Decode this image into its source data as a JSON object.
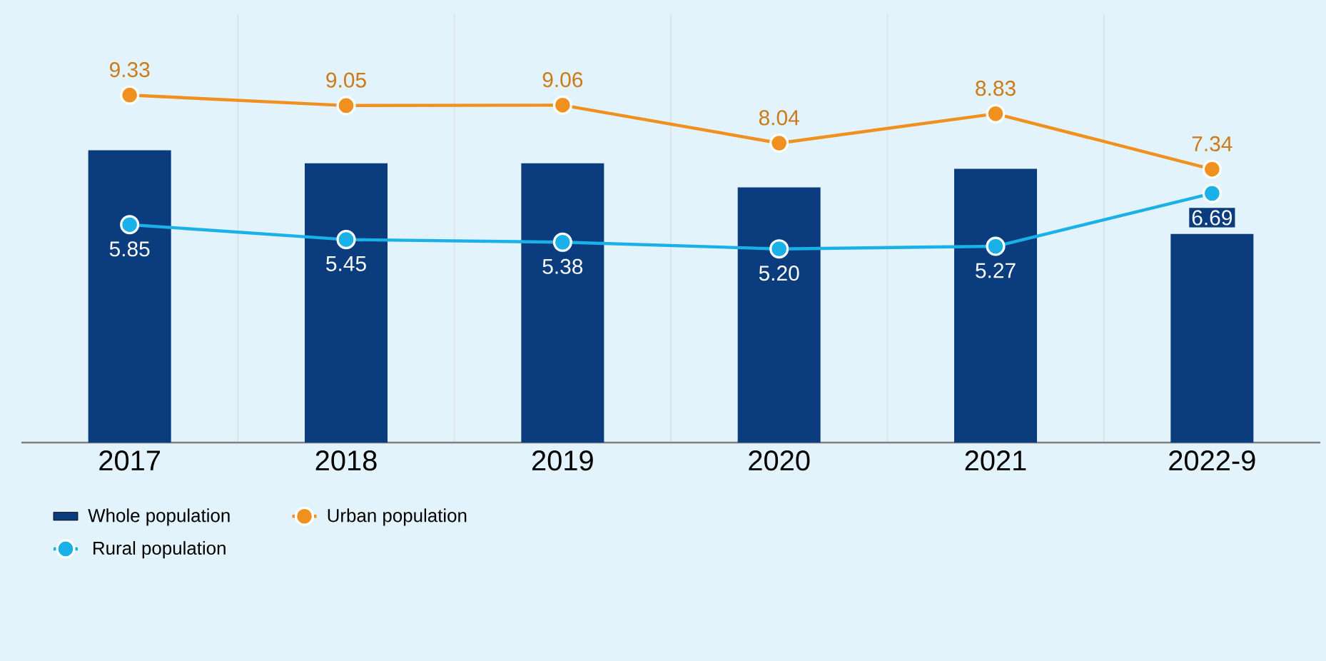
{
  "chart_data": {
    "type": "bar",
    "categories": [
      "2017",
      "2018",
      "2019",
      "2020",
      "2021",
      "2022-9"
    ],
    "series": [
      {
        "name": "Whole population",
        "type": "bar",
        "color": "#0b3d7e",
        "values": [
          7.85,
          7.5,
          7.5,
          6.85,
          7.35,
          5.6
        ]
      },
      {
        "name": "Urban population",
        "type": "line",
        "color": "#f0901e",
        "marker": "circle",
        "line_style": "solid",
        "values": [
          9.33,
          9.05,
          9.06,
          8.04,
          8.83,
          7.34
        ],
        "value_labels": [
          "9.33",
          "9.05",
          "9.06",
          "8.04",
          "8.83",
          "7.34"
        ]
      },
      {
        "name": "Rural population",
        "type": "line",
        "color": "#1ab0e8",
        "marker": "circle",
        "line_style": "solid",
        "values": [
          5.85,
          5.45,
          5.38,
          5.2,
          5.27,
          6.69
        ],
        "value_labels": [
          "5.85",
          "5.45",
          "5.38",
          "5.20",
          "5.27",
          "6.69"
        ]
      }
    ],
    "ylim": [
      0,
      11.5
    ],
    "tick_labels": "x",
    "grid": "x",
    "legend": "bottom left"
  }
}
